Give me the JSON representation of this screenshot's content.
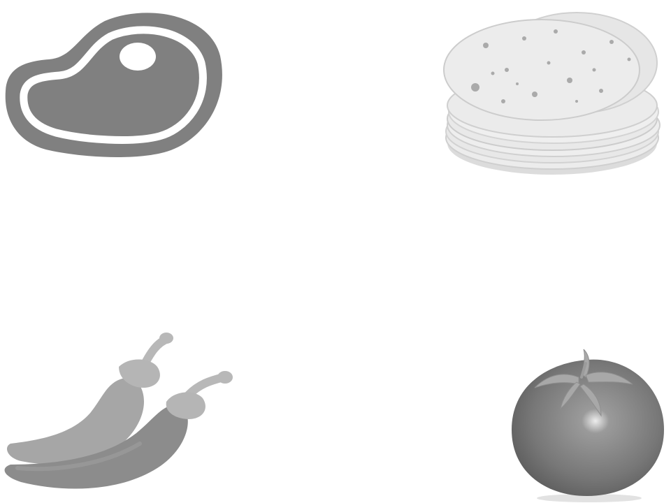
{
  "items": [
    {
      "id": "steak",
      "icon": "steak-icon"
    },
    {
      "id": "tortilla",
      "icon": "tortilla-stack-icon"
    },
    {
      "id": "pepper",
      "icon": "chili-peppers-icon"
    },
    {
      "id": "tomato",
      "icon": "tomato-icon"
    }
  ],
  "colors": {
    "background": "#ffffff",
    "steak": "#808080",
    "tortilla": "#e6e6e6",
    "pepper_light": "#a6a6a6",
    "pepper_dark": "#8c8c8c",
    "tomato": "#7a7a7a"
  }
}
